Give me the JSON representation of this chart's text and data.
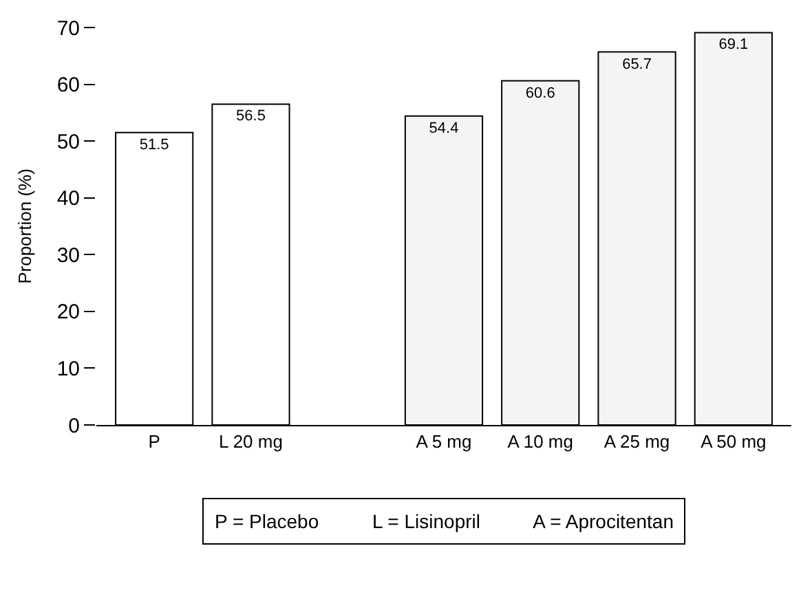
{
  "chart_data": {
    "type": "bar",
    "ylabel": "Proportion (%)",
    "categories": [
      "P",
      "L 20 mg",
      null,
      "A 5 mg",
      "A 10 mg",
      "A 25 mg",
      "A 50 mg"
    ],
    "values": [
      51.5,
      56.5,
      null,
      54.4,
      60.6,
      65.7,
      69.1
    ],
    "colors": [
      "#ffffff",
      "#ffffff",
      "#ffffff",
      "#f4f4f4",
      "#f4f4f4",
      "#f4f4f4",
      "#f4f4f4"
    ],
    "ylim": [
      0,
      70
    ],
    "yticks": [
      0,
      10,
      20,
      30,
      40,
      50,
      60,
      70
    ],
    "data_labels": true,
    "annotations": [
      "P = Placebo          L = Lisinopril          A = Aprocitentan"
    ]
  }
}
